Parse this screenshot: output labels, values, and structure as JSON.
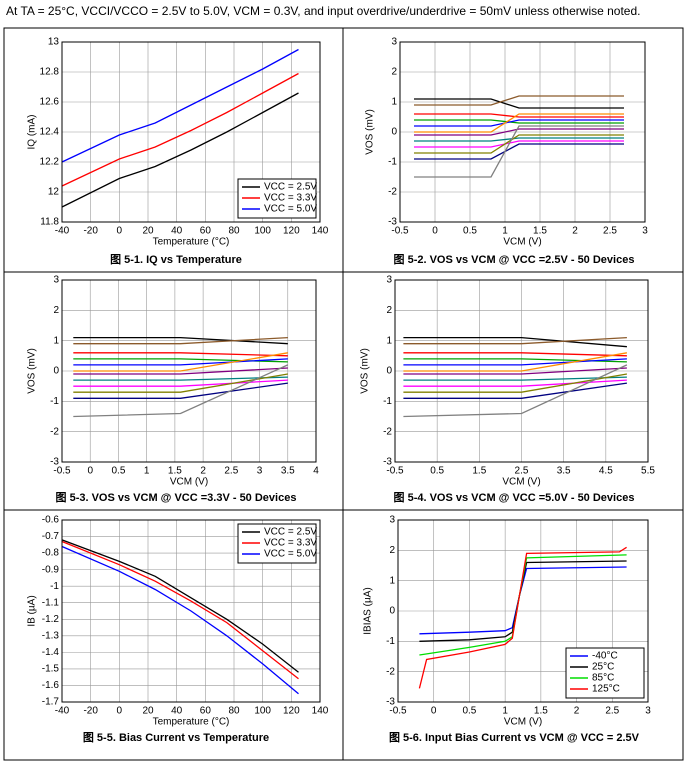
{
  "header": "At TA = 25°C, VCCI/VCCO = 2.5V to 5.0V, VCM = 0.3V, and input overdrive/underdrive = 50mV unless otherwise noted.",
  "chart_data": [
    {
      "type": "line",
      "title": "图 5-1. IQ vs Temperature",
      "xlabel": "Temperature (°C)",
      "ylabel": "IQ (mA)",
      "xlim": [
        -40,
        140
      ],
      "xticks": [
        -40,
        -20,
        0,
        20,
        40,
        60,
        80,
        100,
        120,
        140
      ],
      "ylim": [
        11.8,
        13
      ],
      "yticks": [
        11.8,
        12,
        12.2,
        12.4,
        12.6,
        12.8,
        13
      ],
      "grid": true,
      "legend": "lower right",
      "series": [
        {
          "name": "VCC = 2.5V",
          "color": "#000000",
          "x": [
            -40,
            0,
            25,
            50,
            75,
            100,
            125
          ],
          "values": [
            11.9,
            12.09,
            12.17,
            12.28,
            12.4,
            12.53,
            12.66
          ]
        },
        {
          "name": "VCC = 3.3V",
          "color": "#ff0000",
          "x": [
            -40,
            0,
            25,
            50,
            75,
            100,
            125
          ],
          "values": [
            12.04,
            12.22,
            12.3,
            12.41,
            12.53,
            12.66,
            12.79
          ]
        },
        {
          "name": "VCC = 5.0V",
          "color": "#0000ff",
          "x": [
            -40,
            0,
            25,
            50,
            75,
            100,
            125
          ],
          "values": [
            12.2,
            12.38,
            12.46,
            12.58,
            12.7,
            12.82,
            12.95
          ]
        }
      ]
    },
    {
      "type": "line",
      "title": "图 5-2. VOS vs VCM @ VCC =2.5V - 50 Devices",
      "xlabel": "VCM (V)",
      "ylabel": "VOS (mV)",
      "xlim": [
        -0.5,
        3
      ],
      "xticks": [
        -0.5,
        0,
        0.5,
        1,
        1.5,
        2,
        2.5,
        3
      ],
      "ylim": [
        -3,
        3
      ],
      "yticks": [
        -3,
        -2,
        -1,
        0,
        1,
        2,
        3
      ],
      "grid": true,
      "series": [
        {
          "color": "#000000",
          "x": [
            -0.3,
            0.8,
            1.2,
            2.7
          ],
          "values": [
            1.1,
            1.1,
            0.8,
            0.8
          ]
        },
        {
          "color": "#8b5a2b",
          "x": [
            -0.3,
            0.8,
            1.2,
            2.7
          ],
          "values": [
            0.9,
            0.9,
            1.2,
            1.2
          ]
        },
        {
          "color": "#ff0000",
          "x": [
            -0.3,
            0.8,
            1.2,
            2.7
          ],
          "values": [
            0.6,
            0.6,
            0.5,
            0.5
          ]
        },
        {
          "color": "#00a000",
          "x": [
            -0.3,
            0.8,
            1.2,
            2.7
          ],
          "values": [
            0.4,
            0.4,
            0.3,
            0.3
          ]
        },
        {
          "color": "#0000ff",
          "x": [
            -0.3,
            0.8,
            1.2,
            2.7
          ],
          "values": [
            0.2,
            0.2,
            0.4,
            0.4
          ]
        },
        {
          "color": "#ff8c00",
          "x": [
            -0.3,
            0.8,
            1.2,
            2.7
          ],
          "values": [
            0,
            0,
            0.6,
            0.6
          ]
        },
        {
          "color": "#800080",
          "x": [
            -0.3,
            0.8,
            1.2,
            2.7
          ],
          "values": [
            -0.1,
            -0.1,
            0.1,
            0.1
          ]
        },
        {
          "color": "#008080",
          "x": [
            -0.3,
            0.8,
            1.2,
            2.7
          ],
          "values": [
            -0.3,
            -0.3,
            -0.2,
            -0.2
          ]
        },
        {
          "color": "#ff00ff",
          "x": [
            -0.3,
            0.8,
            1.2,
            2.7
          ],
          "values": [
            -0.5,
            -0.5,
            -0.3,
            -0.3
          ]
        },
        {
          "color": "#808000",
          "x": [
            -0.3,
            0.8,
            1.2,
            2.7
          ],
          "values": [
            -0.7,
            -0.7,
            -0.1,
            -0.1
          ]
        },
        {
          "color": "#000080",
          "x": [
            -0.3,
            0.8,
            1.2,
            2.7
          ],
          "values": [
            -0.9,
            -0.9,
            -0.4,
            -0.4
          ]
        },
        {
          "color": "#808080",
          "x": [
            -0.3,
            0.8,
            1.2,
            2.7
          ],
          "values": [
            -1.5,
            -1.5,
            0.2,
            0.2
          ]
        }
      ]
    },
    {
      "type": "line",
      "title": "图 5-3. VOS vs VCM @ VCC =3.3V - 50 Devices",
      "xlabel": "VCM (V)",
      "ylabel": "VOS (mV)",
      "xlim": [
        -0.5,
        4
      ],
      "xticks": [
        -0.5,
        0,
        0.5,
        1,
        1.5,
        2,
        2.5,
        3,
        3.5,
        4
      ],
      "ylim": [
        -3,
        3
      ],
      "yticks": [
        -3,
        -2,
        -1,
        0,
        1,
        2,
        3
      ],
      "grid": true,
      "series": [
        {
          "color": "#000000",
          "x": [
            -0.3,
            1.6,
            3.5
          ],
          "values": [
            1.1,
            1.1,
            0.9
          ]
        },
        {
          "color": "#8b5a2b",
          "x": [
            -0.3,
            1.6,
            3.5
          ],
          "values": [
            0.9,
            0.9,
            1.1
          ]
        },
        {
          "color": "#ff0000",
          "x": [
            -0.3,
            1.6,
            3.5
          ],
          "values": [
            0.6,
            0.6,
            0.5
          ]
        },
        {
          "color": "#00a000",
          "x": [
            -0.3,
            1.6,
            3.5
          ],
          "values": [
            0.4,
            0.4,
            0.3
          ]
        },
        {
          "color": "#0000ff",
          "x": [
            -0.3,
            1.6,
            3.5
          ],
          "values": [
            0.2,
            0.2,
            0.4
          ]
        },
        {
          "color": "#ff8c00",
          "x": [
            -0.3,
            1.6,
            3.5
          ],
          "values": [
            0,
            0,
            0.6
          ]
        },
        {
          "color": "#800080",
          "x": [
            -0.3,
            1.6,
            3.5
          ],
          "values": [
            -0.1,
            -0.1,
            0.1
          ]
        },
        {
          "color": "#008080",
          "x": [
            -0.3,
            1.6,
            3.5
          ],
          "values": [
            -0.3,
            -0.3,
            -0.2
          ]
        },
        {
          "color": "#ff00ff",
          "x": [
            -0.3,
            1.6,
            3.5
          ],
          "values": [
            -0.5,
            -0.5,
            -0.3
          ]
        },
        {
          "color": "#808000",
          "x": [
            -0.3,
            1.6,
            3.5
          ],
          "values": [
            -0.7,
            -0.7,
            -0.1
          ]
        },
        {
          "color": "#000080",
          "x": [
            -0.3,
            1.6,
            3.5
          ],
          "values": [
            -0.9,
            -0.9,
            -0.4
          ]
        },
        {
          "color": "#808080",
          "x": [
            -0.3,
            1.6,
            3.5
          ],
          "values": [
            -1.5,
            -1.4,
            0.2
          ]
        }
      ]
    },
    {
      "type": "line",
      "title": "图 5-4. VOS vs VCM @ VCC =5.0V - 50 Devices",
      "xlabel": "VCM (V)",
      "ylabel": "VOS (mV)",
      "xlim": [
        -0.5,
        5.5
      ],
      "xticks": [
        -0.5,
        0.5,
        1.5,
        2.5,
        3.5,
        4.5,
        5.5
      ],
      "ylim": [
        -3,
        3
      ],
      "yticks": [
        -3,
        -2,
        -1,
        0,
        1,
        2,
        3
      ],
      "grid": true,
      "series": [
        {
          "color": "#000000",
          "x": [
            -0.3,
            2.5,
            5
          ],
          "values": [
            1.1,
            1.1,
            0.8
          ]
        },
        {
          "color": "#8b5a2b",
          "x": [
            -0.3,
            2.5,
            5
          ],
          "values": [
            0.9,
            0.9,
            1.1
          ]
        },
        {
          "color": "#ff0000",
          "x": [
            -0.3,
            2.5,
            5
          ],
          "values": [
            0.6,
            0.6,
            0.5
          ]
        },
        {
          "color": "#00a000",
          "x": [
            -0.3,
            2.5,
            5
          ],
          "values": [
            0.4,
            0.4,
            0.3
          ]
        },
        {
          "color": "#0000ff",
          "x": [
            -0.3,
            2.5,
            5
          ],
          "values": [
            0.2,
            0.2,
            0.4
          ]
        },
        {
          "color": "#ff8c00",
          "x": [
            -0.3,
            2.5,
            5
          ],
          "values": [
            0,
            0,
            0.6
          ]
        },
        {
          "color": "#800080",
          "x": [
            -0.3,
            2.5,
            5
          ],
          "values": [
            -0.1,
            -0.1,
            0.1
          ]
        },
        {
          "color": "#008080",
          "x": [
            -0.3,
            2.5,
            5
          ],
          "values": [
            -0.3,
            -0.3,
            -0.2
          ]
        },
        {
          "color": "#ff00ff",
          "x": [
            -0.3,
            2.5,
            5
          ],
          "values": [
            -0.5,
            -0.5,
            -0.3
          ]
        },
        {
          "color": "#808000",
          "x": [
            -0.3,
            2.5,
            5
          ],
          "values": [
            -0.7,
            -0.7,
            -0.1
          ]
        },
        {
          "color": "#000080",
          "x": [
            -0.3,
            2.5,
            5
          ],
          "values": [
            -0.9,
            -0.9,
            -0.4
          ]
        },
        {
          "color": "#808080",
          "x": [
            -0.3,
            2.5,
            5
          ],
          "values": [
            -1.5,
            -1.4,
            0.2
          ]
        }
      ]
    },
    {
      "type": "line",
      "title": "图 5-5. Bias Current vs Temperature",
      "xlabel": "Temperature (°C)",
      "ylabel": "IB (µA)",
      "xlim": [
        -40,
        140
      ],
      "xticks": [
        -40,
        -20,
        0,
        20,
        40,
        60,
        80,
        100,
        120,
        140
      ],
      "ylim": [
        -1.7,
        -0.6
      ],
      "yticks": [
        -1.7,
        -1.6,
        -1.5,
        -1.4,
        -1.3,
        -1.2,
        -1.1,
        -1,
        -0.9,
        -0.8,
        -0.7,
        -0.6
      ],
      "grid": true,
      "legend": "upper right",
      "series": [
        {
          "name": "VCC = 2.5V",
          "color": "#000000",
          "x": [
            -40,
            0,
            25,
            50,
            75,
            100,
            125
          ],
          "values": [
            -0.72,
            -0.85,
            -0.94,
            -1.07,
            -1.2,
            -1.35,
            -1.52
          ]
        },
        {
          "name": "VCC = 3.3V",
          "color": "#ff0000",
          "x": [
            -40,
            0,
            25,
            50,
            75,
            100,
            125
          ],
          "values": [
            -0.73,
            -0.87,
            -0.97,
            -1.09,
            -1.22,
            -1.39,
            -1.56
          ]
        },
        {
          "name": "VCC = 5.0V",
          "color": "#0000ff",
          "x": [
            -40,
            0,
            25,
            50,
            75,
            100,
            125
          ],
          "values": [
            -0.76,
            -0.91,
            -1.02,
            -1.15,
            -1.3,
            -1.47,
            -1.65
          ]
        }
      ]
    },
    {
      "type": "line",
      "title": "图 5-6. Input Bias Current vs VCM @ VCC = 2.5V",
      "xlabel": "VCM (V)",
      "ylabel": "IBIAS (µA)",
      "xlim": [
        -0.5,
        3
      ],
      "xticks": [
        -0.5,
        0,
        0.5,
        1,
        1.5,
        2,
        2.5,
        3
      ],
      "ylim": [
        -3,
        3
      ],
      "yticks": [
        -3,
        -2,
        -1,
        0,
        1,
        2,
        3
      ],
      "grid": true,
      "legend": "lower right",
      "series": [
        {
          "name": "-40°C",
          "color": "#0000ff",
          "x": [
            -0.2,
            0.5,
            1,
            1.1,
            1.2,
            1.3,
            2.7
          ],
          "values": [
            -0.75,
            -0.7,
            -0.65,
            -0.55,
            0.5,
            1.4,
            1.45
          ]
        },
        {
          "name": "25°C",
          "color": "#000000",
          "x": [
            -0.2,
            0.5,
            1,
            1.1,
            1.2,
            1.3,
            2.7
          ],
          "values": [
            -1,
            -0.95,
            -0.85,
            -0.7,
            0.5,
            1.6,
            1.65
          ]
        },
        {
          "name": "85°C",
          "color": "#00dd00",
          "x": [
            -0.2,
            0.5,
            1,
            1.1,
            1.2,
            1.3,
            2.7
          ],
          "values": [
            -1.45,
            -1.2,
            -1,
            -0.85,
            0.5,
            1.75,
            1.85
          ]
        },
        {
          "name": "125°C",
          "color": "#ff0000",
          "x": [
            -0.2,
            -0.1,
            0.5,
            1,
            1.1,
            1.2,
            1.3,
            2.6,
            2.7
          ],
          "values": [
            -2.55,
            -1.6,
            -1.35,
            -1.1,
            -0.9,
            0.5,
            1.9,
            1.95,
            2.1
          ]
        }
      ]
    }
  ]
}
